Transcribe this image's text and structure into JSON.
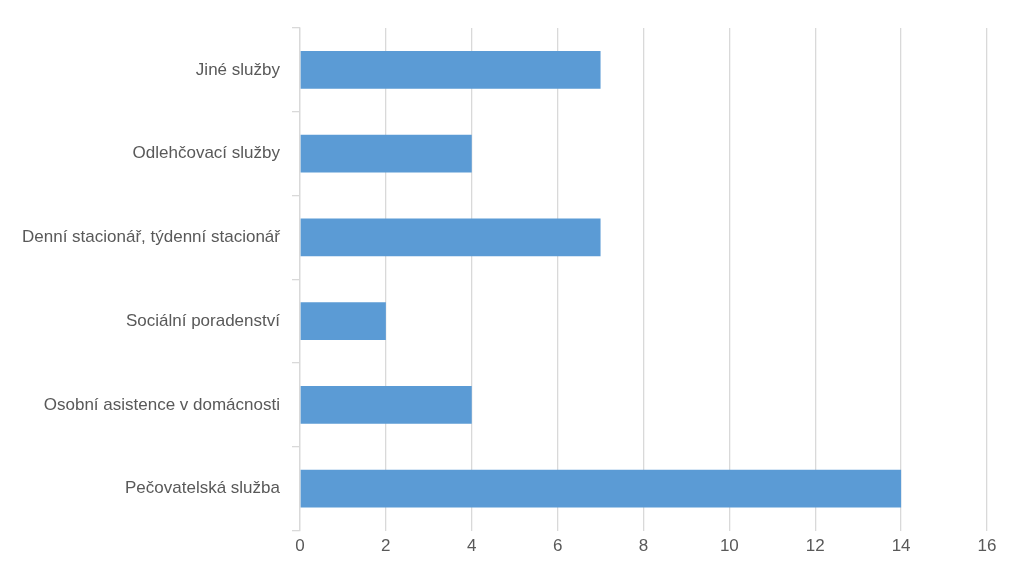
{
  "chart_data": {
    "type": "bar",
    "orientation": "horizontal",
    "categories": [
      "Jiné služby",
      "Odlehčovací služby",
      "Denní stacionář, týdenní stacionář",
      "Sociální poradenství",
      "Osobní asistence v domácnosti",
      "Pečovatelská služba"
    ],
    "values": [
      7,
      4,
      7,
      2,
      4,
      14
    ],
    "color": "#5b9bd5",
    "xlim": [
      0,
      16
    ],
    "xticks": [
      0,
      2,
      4,
      6,
      8,
      10,
      12,
      14,
      16
    ],
    "grid": "x",
    "legend": false
  }
}
